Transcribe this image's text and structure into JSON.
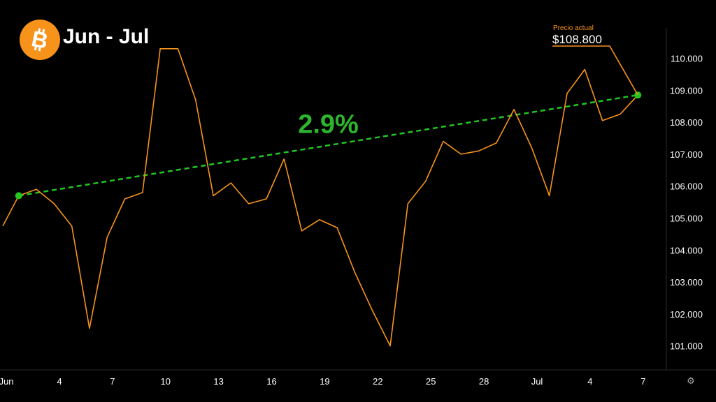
{
  "header": {
    "title": "Jun - Jul",
    "logo_icon": "bitcoin-logo-icon"
  },
  "badge": {
    "label": "Precio actual",
    "value": "$108.800"
  },
  "colors": {
    "price_line": "#f7931a",
    "trend_line": "#22c522",
    "percent_text": "#2db52d",
    "axis_text": "#ffffff"
  },
  "chart_data": {
    "type": "line",
    "title": "",
    "xlabel": "",
    "ylabel": "",
    "x_ticks": [
      {
        "label": "Jun",
        "day": 1
      },
      {
        "label": "4",
        "day": 4
      },
      {
        "label": "7",
        "day": 7
      },
      {
        "label": "10",
        "day": 10
      },
      {
        "label": "13",
        "day": 13
      },
      {
        "label": "16",
        "day": 16
      },
      {
        "label": "19",
        "day": 19
      },
      {
        "label": "22",
        "day": 22
      },
      {
        "label": "25",
        "day": 25
      },
      {
        "label": "28",
        "day": 28
      },
      {
        "label": "Jul",
        "day": 31
      },
      {
        "label": "4",
        "day": 34
      },
      {
        "label": "7",
        "day": 37
      }
    ],
    "y_ticks": [
      "101.000",
      "102.000",
      "103.000",
      "104.000",
      "105.000",
      "106.000",
      "107.000",
      "108.000",
      "109.000",
      "110.000"
    ],
    "y_tick_values": [
      101000,
      102000,
      103000,
      104000,
      105000,
      106000,
      107000,
      108000,
      109000,
      110000
    ],
    "xlim": [
      0.8,
      37.6
    ],
    "ylim": [
      100250,
      110950
    ],
    "series": [
      {
        "values": [
          [
            0.8,
            104750
          ],
          [
            1.7,
            105700
          ],
          [
            2.7,
            105900
          ],
          [
            3.7,
            105450
          ],
          [
            4.7,
            104750
          ],
          [
            5.7,
            101550
          ],
          [
            6.7,
            104400
          ],
          [
            7.7,
            105600
          ],
          [
            8.7,
            105800
          ],
          [
            9.7,
            110300
          ],
          [
            10.7,
            110300
          ],
          [
            11.7,
            108700
          ],
          [
            12.7,
            105700
          ],
          [
            13.7,
            106100
          ],
          [
            14.7,
            105450
          ],
          [
            15.7,
            105600
          ],
          [
            16.7,
            106850
          ],
          [
            17.7,
            104600
          ],
          [
            18.7,
            104950
          ],
          [
            19.7,
            104700
          ],
          [
            20.7,
            103300
          ],
          [
            21.7,
            102100
          ],
          [
            22.7,
            101000
          ],
          [
            23.7,
            105450
          ],
          [
            24.7,
            106150
          ],
          [
            25.7,
            107400
          ],
          [
            26.7,
            107000
          ],
          [
            27.7,
            107100
          ],
          [
            28.7,
            107350
          ],
          [
            29.7,
            108400
          ],
          [
            30.7,
            107200
          ],
          [
            31.7,
            105700
          ],
          [
            32.7,
            108900
          ],
          [
            33.7,
            109650
          ],
          [
            34.7,
            108050
          ],
          [
            35.7,
            108250
          ],
          [
            36.7,
            108850
          ]
        ]
      }
    ],
    "trend": {
      "start": [
        1.7,
        105700
      ],
      "end": [
        36.7,
        108850
      ],
      "label": "2.9%"
    },
    "grid": false,
    "legend": "none"
  }
}
